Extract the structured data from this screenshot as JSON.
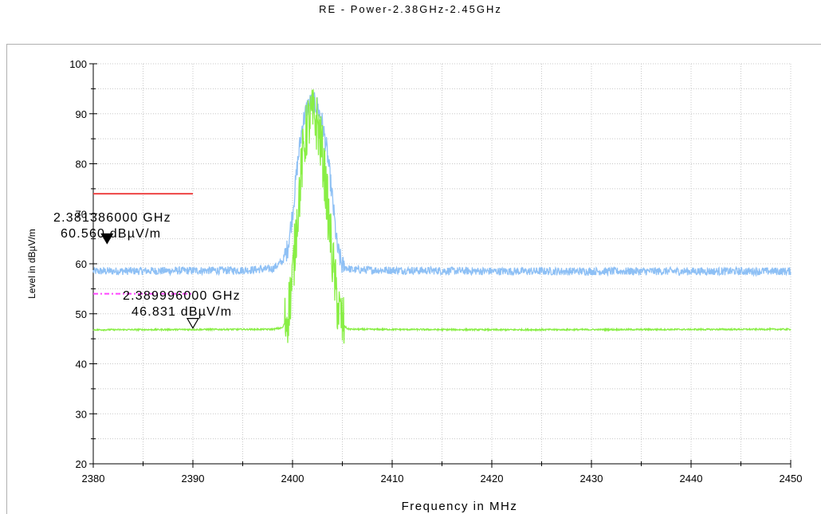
{
  "title": "RE - Power-2.38GHz-2.45GHz",
  "chart_data": {
    "type": "line",
    "title": "RE - Power-2.38GHz-2.45GHz",
    "xlabel": "Frequency in MHz",
    "ylabel": "Level in dBµV/m",
    "xlim": [
      2380,
      2450
    ],
    "ylim": [
      20,
      100
    ],
    "x_ticks": [
      "2380",
      "2390",
      "2400",
      "2410",
      "2420",
      "2430",
      "2440",
      "2450"
    ],
    "y_ticks": [
      "20",
      "30",
      "40",
      "50",
      "60",
      "70",
      "80",
      "90",
      "100"
    ],
    "grid": true,
    "colors": {
      "peak": "#8ec0f5",
      "average": "#88ee44",
      "limit_peak": "#ee4444",
      "limit_avg": "#ff44ff"
    },
    "series": [
      {
        "role": "peak",
        "x": [
          2380,
          2395,
          2398,
          2399,
          2399.5,
          2400,
          2400.5,
          2401,
          2401.5,
          2402,
          2402.5,
          2403,
          2403.5,
          2404,
          2404.5,
          2405,
          2406,
          2420,
          2440,
          2450
        ],
        "y": [
          58.5,
          58.7,
          59.0,
          60.5,
          63.0,
          70.0,
          80.0,
          88.0,
          91.5,
          92.5,
          91.5,
          88.0,
          82.0,
          73.0,
          63.0,
          59.5,
          58.8,
          58.5,
          58.5,
          58.5
        ]
      },
      {
        "role": "average",
        "x": [
          2380,
          2398,
          2399,
          2399.5,
          2400,
          2400.5,
          2401,
          2401.5,
          2402,
          2402.5,
          2403,
          2403.5,
          2404,
          2404.5,
          2405,
          2405.5,
          2406,
          2420,
          2450
        ],
        "y": [
          46.8,
          46.9,
          47.2,
          49.5,
          57.0,
          70.0,
          81.0,
          88.0,
          89.5,
          88.0,
          82.0,
          72.0,
          61.0,
          52.0,
          48.0,
          47.0,
          46.9,
          46.8,
          46.9
        ]
      }
    ],
    "limits": [
      {
        "role": "limit_peak",
        "x": [
          2380,
          2390
        ],
        "y": [
          74,
          74
        ]
      },
      {
        "role": "limit_avg",
        "x": [
          2380,
          2390
        ],
        "y": [
          54,
          54
        ]
      }
    ],
    "markers": [
      {
        "x": 2381.386,
        "y": 60.56,
        "freq_label": "2.381386000 GHz",
        "level_label": "60.560 dBµV/m",
        "filled": true
      },
      {
        "x": 2389.996,
        "y": 46.831,
        "freq_label": "2.389996000 GHz",
        "level_label": "46.831 dBµV/m",
        "filled": false
      }
    ]
  }
}
